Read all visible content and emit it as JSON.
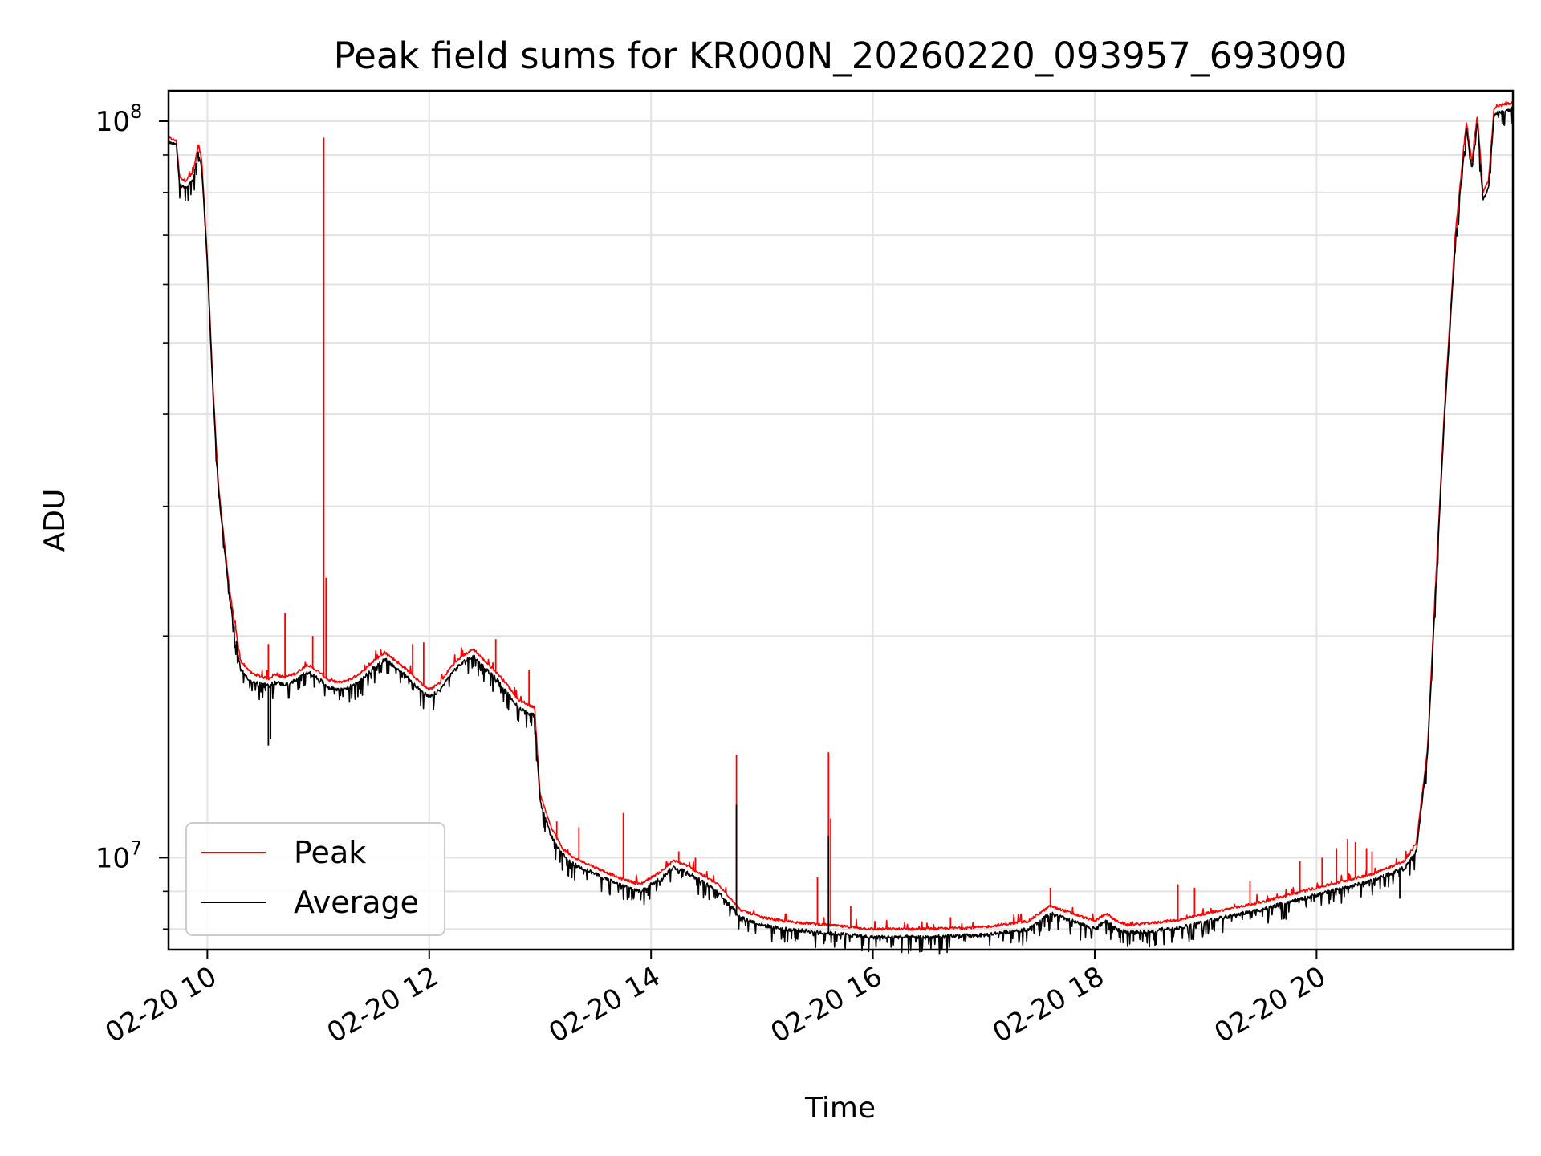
{
  "chart_data": {
    "type": "line",
    "title": "Peak field sums for KR000N_20260220_093957_693090",
    "xlabel": "Time",
    "ylabel": "ADU",
    "yscale": "log",
    "xlim": [
      9.65,
      21.77
    ],
    "ylim": [
      7500000,
      110000000
    ],
    "x_unit": "hours on 2026-02-20",
    "x_ticks": [
      {
        "value": 10,
        "label": "02-20 10"
      },
      {
        "value": 12,
        "label": "02-20 12"
      },
      {
        "value": 14,
        "label": "02-20 14"
      },
      {
        "value": 16,
        "label": "02-20 16"
      },
      {
        "value": 18,
        "label": "02-20 18"
      },
      {
        "value": 20,
        "label": "02-20 20"
      }
    ],
    "y_major_ticks": [
      {
        "value": 10000000,
        "base": "10",
        "exp": "7"
      },
      {
        "value": 100000000,
        "base": "10",
        "exp": "8"
      }
    ],
    "y_minor_ticks": [
      8000000,
      9000000,
      20000000,
      30000000,
      40000000,
      50000000,
      60000000,
      70000000,
      80000000,
      90000000
    ],
    "grid": true,
    "legend": {
      "position": "lower-left",
      "entries": [
        {
          "name": "Peak",
          "color": "#ff0000"
        },
        {
          "name": "Average",
          "color": "#000000"
        }
      ]
    },
    "series": [
      {
        "name": "Peak",
        "color": "#ff0000",
        "x": [
          9.65,
          9.72,
          9.75,
          9.8,
          9.87,
          9.92,
          9.95,
          10.0,
          10.05,
          10.1,
          10.2,
          10.3,
          10.4,
          10.5,
          10.55,
          10.6,
          10.7,
          10.8,
          10.9,
          11.0,
          11.1,
          11.2,
          11.3,
          11.4,
          11.5,
          11.6,
          11.7,
          11.8,
          11.9,
          12.0,
          12.1,
          12.2,
          12.3,
          12.4,
          12.5,
          12.6,
          12.7,
          12.8,
          12.9,
          12.95,
          13.0,
          13.1,
          13.2,
          13.3,
          13.5,
          13.7,
          13.9,
          14.1,
          14.2,
          14.3,
          14.4,
          14.5,
          14.6,
          14.75,
          14.8,
          15.0,
          15.2,
          15.4,
          15.6,
          15.8,
          16.0,
          16.5,
          17.0,
          17.4,
          17.6,
          17.7,
          17.9,
          18.0,
          18.1,
          18.2,
          18.3,
          18.5,
          18.8,
          19.0,
          19.5,
          20.0,
          20.5,
          20.8,
          20.9,
          21.0,
          21.05,
          21.15,
          21.25,
          21.35,
          21.4,
          21.45,
          21.5,
          21.55,
          21.6,
          21.65,
          21.77
        ],
        "y": [
          95000000,
          94000000,
          84000000,
          83000000,
          85000000,
          93000000,
          88000000,
          65000000,
          44000000,
          32000000,
          23000000,
          18500000,
          17800000,
          17600000,
          17500000,
          17700000,
          17600000,
          17800000,
          18300000,
          17900000,
          17400000,
          17300000,
          17500000,
          17900000,
          18500000,
          19000000,
          18500000,
          18000000,
          17400000,
          16900000,
          17300000,
          18200000,
          18800000,
          19200000,
          18500000,
          17900000,
          17200000,
          16400000,
          16100000,
          16000000,
          12200000,
          11000000,
          10300000,
          10000000,
          9700000,
          9400000,
          9200000,
          9600000,
          9900000,
          9800000,
          9600000,
          9400000,
          9200000,
          8700000,
          8500000,
          8300000,
          8200000,
          8150000,
          8100000,
          8050000,
          8000000,
          8000000,
          8050000,
          8200000,
          8600000,
          8500000,
          8300000,
          8200000,
          8400000,
          8200000,
          8100000,
          8150000,
          8250000,
          8400000,
          8700000,
          9100000,
          9500000,
          9900000,
          10500000,
          14000000,
          20000000,
          40000000,
          70000000,
          100000000,
          88000000,
          102000000,
          80000000,
          83000000,
          104000000,
          105000000,
          106000000
        ],
        "spikes": [
          [
            10.55,
            19500000
          ],
          [
            10.7,
            21500000
          ],
          [
            10.95,
            20000000
          ],
          [
            11.05,
            95000000
          ],
          [
            11.07,
            24000000
          ],
          [
            11.85,
            19500000
          ],
          [
            11.95,
            19600000
          ],
          [
            12.6,
            19800000
          ],
          [
            12.9,
            18000000
          ],
          [
            13.15,
            11200000
          ],
          [
            13.35,
            11000000
          ],
          [
            13.75,
            11500000
          ],
          [
            14.25,
            10200000
          ],
          [
            14.4,
            10000000
          ],
          [
            14.77,
            13800000
          ],
          [
            15.5,
            9400000
          ],
          [
            15.6,
            13900000
          ],
          [
            15.62,
            11300000
          ],
          [
            15.8,
            8600000
          ],
          [
            16.7,
            8300000
          ],
          [
            17.6,
            9100000
          ],
          [
            18.75,
            9200000
          ],
          [
            18.9,
            9100000
          ],
          [
            19.4,
            9300000
          ],
          [
            19.85,
            9900000
          ],
          [
            20.05,
            10000000
          ],
          [
            20.18,
            10300000
          ],
          [
            20.28,
            10600000
          ],
          [
            20.35,
            10500000
          ],
          [
            20.45,
            10300000
          ],
          [
            20.5,
            10200000
          ]
        ]
      },
      {
        "name": "Average",
        "color": "#000000",
        "x": [
          9.65,
          9.72,
          9.75,
          9.8,
          9.87,
          9.92,
          9.95,
          10.0,
          10.05,
          10.1,
          10.2,
          10.3,
          10.4,
          10.5,
          10.55,
          10.6,
          10.7,
          10.8,
          10.9,
          11.0,
          11.1,
          11.2,
          11.3,
          11.4,
          11.5,
          11.6,
          11.7,
          11.8,
          11.9,
          12.0,
          12.1,
          12.2,
          12.3,
          12.4,
          12.5,
          12.6,
          12.7,
          12.8,
          12.9,
          12.95,
          13.0,
          13.1,
          13.2,
          13.3,
          13.5,
          13.7,
          13.9,
          14.1,
          14.2,
          14.3,
          14.4,
          14.5,
          14.6,
          14.75,
          14.8,
          15.0,
          15.2,
          15.4,
          15.6,
          15.8,
          16.0,
          16.5,
          17.0,
          17.4,
          17.6,
          17.7,
          17.9,
          18.0,
          18.1,
          18.2,
          18.3,
          18.5,
          18.8,
          19.0,
          19.5,
          20.0,
          20.5,
          20.8,
          20.9,
          21.0,
          21.05,
          21.15,
          21.25,
          21.35,
          21.4,
          21.45,
          21.5,
          21.55,
          21.6,
          21.65,
          21.77
        ],
        "y": [
          94000000,
          93000000,
          82000000,
          81000000,
          83000000,
          91000000,
          86000000,
          64000000,
          43000000,
          31500000,
          22500000,
          18000000,
          17300000,
          17200000,
          17100000,
          17300000,
          17200000,
          17400000,
          17900000,
          17500000,
          17000000,
          16900000,
          17100000,
          17500000,
          18100000,
          18600000,
          18100000,
          17600000,
          17000000,
          16500000,
          16900000,
          17800000,
          18400000,
          18800000,
          18100000,
          17500000,
          16800000,
          16000000,
          15700000,
          15600000,
          11900000,
          10700000,
          10100000,
          9800000,
          9500000,
          9200000,
          9000000,
          9400000,
          9700000,
          9600000,
          9400000,
          9200000,
          9000000,
          8500000,
          8300000,
          8100000,
          8000000,
          7950000,
          7900000,
          7850000,
          7800000,
          7800000,
          7850000,
          8000000,
          8400000,
          8300000,
          8100000,
          8000000,
          8200000,
          8000000,
          7900000,
          7950000,
          8050000,
          8200000,
          8500000,
          8900000,
          9300000,
          9700000,
          10200000,
          13800000,
          19500000,
          39000000,
          68000000,
          98000000,
          86000000,
          100000000,
          78000000,
          81000000,
          102000000,
          103000000,
          104000000
        ],
        "spikes": [
          [
            10.55,
            14200000
          ],
          [
            10.57,
            14500000
          ],
          [
            14.77,
            11800000
          ],
          [
            15.6,
            10700000
          ],
          [
            16.6,
            7400000
          ],
          [
            18.35,
            7700000
          ],
          [
            20.75,
            8800000
          ],
          [
            15.3,
            7700000
          ],
          [
            15.9,
            7600000
          ]
        ]
      }
    ]
  }
}
